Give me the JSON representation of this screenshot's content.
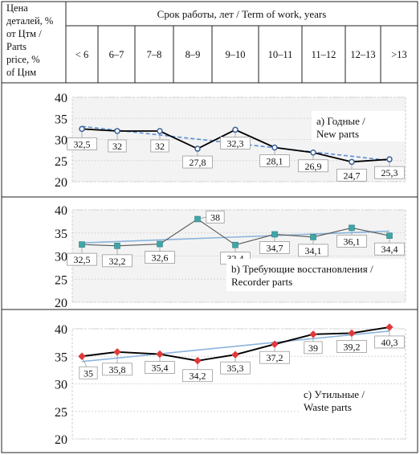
{
  "header": {
    "corner_lines": [
      "Цена",
      "деталей, %",
      "от Цтм /",
      "Parts",
      "price, %",
      "of Цнм"
    ],
    "title": "Срок работы, лет / Term of work, years",
    "categories": [
      "< 6",
      "6–7",
      "7–8",
      "8–9",
      "9–10",
      "10–11",
      "11–12",
      "12–13",
      ">13"
    ]
  },
  "chart_data": [
    {
      "type": "line",
      "title": "a) Годные / New parts",
      "title_lines": [
        "a) Годные /",
        "New parts"
      ],
      "categories": [
        "< 6",
        "6–7",
        "7–8",
        "8–9",
        "9–10",
        "10–11",
        "11–12",
        "12–13",
        ">13"
      ],
      "y_ticks": [
        "40",
        "35",
        "30",
        "25",
        "20"
      ],
      "ylim": [
        20,
        40
      ],
      "trendline": true,
      "colors": {
        "line": "#000000",
        "marker": "#3a5f9a",
        "trend": "#5b8fd4"
      },
      "series": [
        {
          "values": [
            32.5,
            32,
            32,
            27.8,
            32.3,
            28.1,
            26.9,
            24.7,
            25.3
          ]
        }
      ],
      "labels": [
        "32,5",
        "32",
        "32",
        "27,8",
        "32,3",
        "28,1",
        "26,9",
        "24,7",
        "25,3"
      ]
    },
    {
      "type": "line",
      "title": "b) Требующие восстановления / Recorder parts",
      "title_lines": [
        "b) Требующие восстановления /",
        "Recorder parts"
      ],
      "categories": [
        "< 6",
        "6–7",
        "7–8",
        "8–9",
        "9–10",
        "10–11",
        "11–12",
        "12–13",
        ">13"
      ],
      "y_ticks": [
        "40",
        "35",
        "30",
        "25",
        "20"
      ],
      "ylim": [
        20,
        40
      ],
      "trendline": true,
      "colors": {
        "line": "#555555",
        "marker": "#3fa6a8",
        "trend": "#8ab4dc"
      },
      "series": [
        {
          "values": [
            32.5,
            32.2,
            32.6,
            38,
            32.4,
            34.7,
            34.1,
            36.1,
            34.4
          ]
        }
      ],
      "labels": [
        "32,5",
        "32,2",
        "32,6",
        "38",
        "32,4",
        "34,7",
        "34,1",
        "36,1",
        "34,4"
      ]
    },
    {
      "type": "line",
      "title": "c) Утильные / Waste parts",
      "title_lines": [
        "c) Утильные /",
        "Waste parts"
      ],
      "categories": [
        "< 6",
        "6–7",
        "7–8",
        "8–9",
        "9–10",
        "10–11",
        "11–12",
        "12–13",
        ">13"
      ],
      "y_ticks": [
        "40",
        "35",
        "30",
        "25",
        "20"
      ],
      "ylim": [
        20,
        40
      ],
      "trendline": true,
      "colors": {
        "line": "#000000",
        "marker": "#e03a3a",
        "trend": "#8ab4dc"
      },
      "series": [
        {
          "values": [
            35,
            35.8,
            35.4,
            34.2,
            35.3,
            37.2,
            39,
            39.2,
            40.3
          ]
        }
      ],
      "labels": [
        "35",
        "35,8",
        "35,4",
        "34,2",
        "35,3",
        "37,2",
        "39",
        "39,2",
        "40,3"
      ]
    }
  ]
}
